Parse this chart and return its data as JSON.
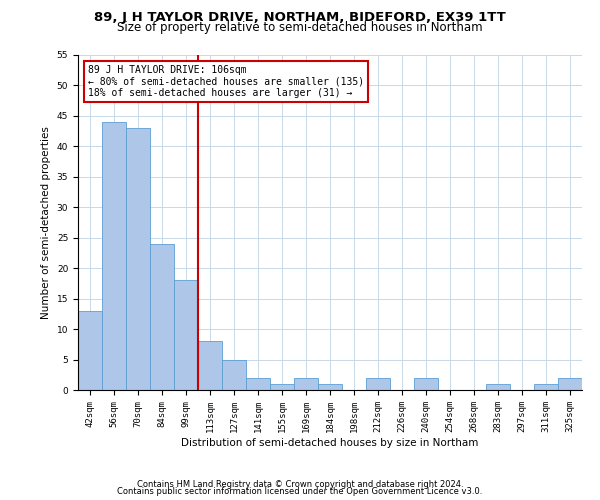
{
  "title": "89, J H TAYLOR DRIVE, NORTHAM, BIDEFORD, EX39 1TT",
  "subtitle": "Size of property relative to semi-detached houses in Northam",
  "xlabel": "Distribution of semi-detached houses by size in Northam",
  "ylabel": "Number of semi-detached properties",
  "categories": [
    "42sqm",
    "56sqm",
    "70sqm",
    "84sqm",
    "99sqm",
    "113sqm",
    "127sqm",
    "141sqm",
    "155sqm",
    "169sqm",
    "184sqm",
    "198sqm",
    "212sqm",
    "226sqm",
    "240sqm",
    "254sqm",
    "268sqm",
    "283sqm",
    "297sqm",
    "311sqm",
    "325sqm"
  ],
  "values": [
    13,
    44,
    43,
    24,
    18,
    8,
    5,
    2,
    1,
    2,
    1,
    0,
    2,
    0,
    2,
    0,
    0,
    1,
    0,
    1,
    2
  ],
  "bar_color": "#aec6e8",
  "bar_edge_color": "#5a9fd4",
  "vline_x_index": 5,
  "vline_color": "#cc0000",
  "annotation_text": "89 J H TAYLOR DRIVE: 106sqm\n← 80% of semi-detached houses are smaller (135)\n18% of semi-detached houses are larger (31) →",
  "annotation_box_color": "#ffffff",
  "annotation_box_edge_color": "#cc0000",
  "ylim": [
    0,
    55
  ],
  "yticks": [
    0,
    5,
    10,
    15,
    20,
    25,
    30,
    35,
    40,
    45,
    50,
    55
  ],
  "footer_line1": "Contains HM Land Registry data © Crown copyright and database right 2024.",
  "footer_line2": "Contains public sector information licensed under the Open Government Licence v3.0.",
  "bg_color": "#ffffff",
  "grid_color": "#c8d8e8",
  "title_fontsize": 9.5,
  "subtitle_fontsize": 8.5,
  "axis_label_fontsize": 7.5,
  "tick_fontsize": 6.5,
  "annotation_fontsize": 7,
  "footer_fontsize": 6
}
